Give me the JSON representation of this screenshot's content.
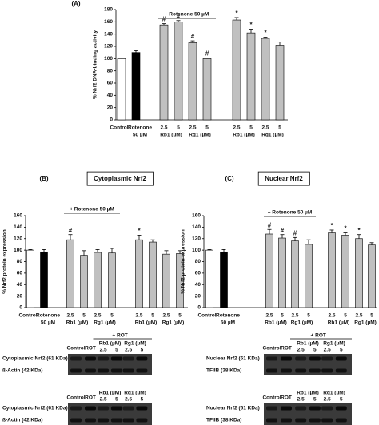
{
  "chart_data": [
    {
      "type": "bar",
      "panel": "(A)",
      "ylabel": "% Nrf2 DNA-binding activity",
      "ylim": [
        0,
        180
      ],
      "yticks": [
        0,
        20,
        40,
        60,
        80,
        100,
        120,
        140,
        160,
        180
      ],
      "bracket_label": "+ Rotenone 50 µM",
      "categories": [
        "Control",
        "Rotenone",
        "2.5",
        "5",
        "2.5",
        "5",
        "2.5",
        "5",
        "2.5",
        "5"
      ],
      "group_labels": [
        "50 µM",
        "Rb1 (µM)",
        "Rg1 (µM)",
        "Rb1 (µM)",
        "Rg1 (µM)"
      ],
      "values": [
        100,
        110,
        155,
        160,
        126,
        100,
        163,
        142,
        133,
        122
      ],
      "errors": [
        1,
        3,
        2,
        2,
        3,
        1,
        4,
        6,
        2,
        5
      ],
      "colors": [
        "#ffffff",
        "#000000",
        "#c0c0c0",
        "#c0c0c0",
        "#c0c0c0",
        "#c0c0c0",
        "#c0c0c0",
        "#c0c0c0",
        "#c0c0c0",
        "#c0c0c0"
      ],
      "markers": [
        null,
        null,
        "#",
        "#",
        "#",
        "#",
        "*",
        "*",
        "*",
        null
      ]
    },
    {
      "type": "bar",
      "panel": "(B)",
      "title": "Cytoplasmic Nrf2",
      "ylabel": "% Nrf2 protein expression",
      "ylim": [
        0,
        160
      ],
      "yticks": [
        0,
        20,
        40,
        60,
        80,
        100,
        120,
        140,
        160
      ],
      "bracket_label": "+ Rotenone 50 µM",
      "categories": [
        "Control",
        "Rotenone",
        "2.5",
        "5",
        "2.5",
        "5",
        "2.5",
        "5",
        "2.5",
        "5"
      ],
      "group_labels": [
        "50 µM",
        "Rb1 (µM)",
        "Rg1 (µM)",
        "Rb1 (µM)",
        "Rg1 (µM)"
      ],
      "values": [
        100,
        97,
        118,
        91,
        96,
        95,
        118,
        114,
        93,
        94
      ],
      "errors": [
        1,
        4,
        9,
        8,
        5,
        8,
        8,
        4,
        6,
        5
      ],
      "colors": [
        "#ffffff",
        "#000000",
        "#c0c0c0",
        "#c0c0c0",
        "#c0c0c0",
        "#c0c0c0",
        "#c0c0c0",
        "#c0c0c0",
        "#c0c0c0",
        "#c0c0c0"
      ],
      "markers": [
        null,
        null,
        "#",
        null,
        null,
        null,
        "*",
        null,
        null,
        null
      ]
    },
    {
      "type": "bar",
      "panel": "(C)",
      "title": "Nuclear Nrf2",
      "ylabel": "% Nrf2 protein expression",
      "ylim": [
        0,
        160
      ],
      "yticks": [
        0,
        20,
        40,
        60,
        80,
        100,
        120,
        140,
        160
      ],
      "bracket_label": "+ Rotenone 50 µM",
      "categories": [
        "Control",
        "Rotenone",
        "2.5",
        "5",
        "2.5",
        "5",
        "2.5",
        "5",
        "2.5",
        "5"
      ],
      "group_labels": [
        "50 µM",
        "Rb1 (µM)",
        "Rg1 (µM)",
        "Rb1 (µM)",
        "Rg1 (µM)"
      ],
      "values": [
        100,
        97,
        128,
        121,
        116,
        110,
        130,
        126,
        120,
        109
      ],
      "errors": [
        1,
        4,
        8,
        6,
        6,
        8,
        5,
        4,
        7,
        4
      ],
      "colors": [
        "#ffffff",
        "#000000",
        "#c0c0c0",
        "#c0c0c0",
        "#c0c0c0",
        "#c0c0c0",
        "#c0c0c0",
        "#c0c0c0",
        "#c0c0c0",
        "#c0c0c0"
      ],
      "markers": [
        null,
        null,
        "#",
        "#",
        "#",
        null,
        "*",
        "*",
        "*",
        null
      ]
    }
  ],
  "blots": [
    {
      "header": "+ ROT",
      "columns": [
        "Control",
        "ROT"
      ],
      "groups": [
        "Rb1 (µM)",
        "Rg1 (µM)"
      ],
      "doses": [
        "2.5",
        "5",
        "2.5",
        "5"
      ],
      "rows": [
        "Cytoplasmic Nrf2 (61 KDa)",
        "ß-Actin (42 KDa)"
      ]
    },
    {
      "columns": [
        "Control",
        "ROT"
      ],
      "groups": [
        "Rb1 (µM)",
        "Rg1 (µM)"
      ],
      "doses": [
        "2.5",
        "5",
        "2.5",
        "5"
      ],
      "rows": [
        "Cytoplasmic Nrf2 (61 KDa)",
        "ß-Actin (42 KDa)"
      ]
    },
    {
      "header": "+ ROT",
      "columns": [
        "Control",
        "ROT"
      ],
      "groups": [
        "Rb1 (µM)",
        "Rg1 (µM)"
      ],
      "doses": [
        "2.5",
        "5",
        "2.5",
        "5"
      ],
      "rows": [
        "Nuclear Nrf2 (61 KDa)",
        "TFIIB (38 KDa)"
      ]
    },
    {
      "columns": [
        "Control",
        "ROT"
      ],
      "groups": [
        "Rb1 (µM)",
        "Rg1 (µM)"
      ],
      "doses": [
        "2.5",
        "5",
        "2.5",
        "5"
      ],
      "rows": [
        "Nuclear Nrf2 (61 KDa)",
        "TFIIB (38 KDa)"
      ]
    }
  ]
}
